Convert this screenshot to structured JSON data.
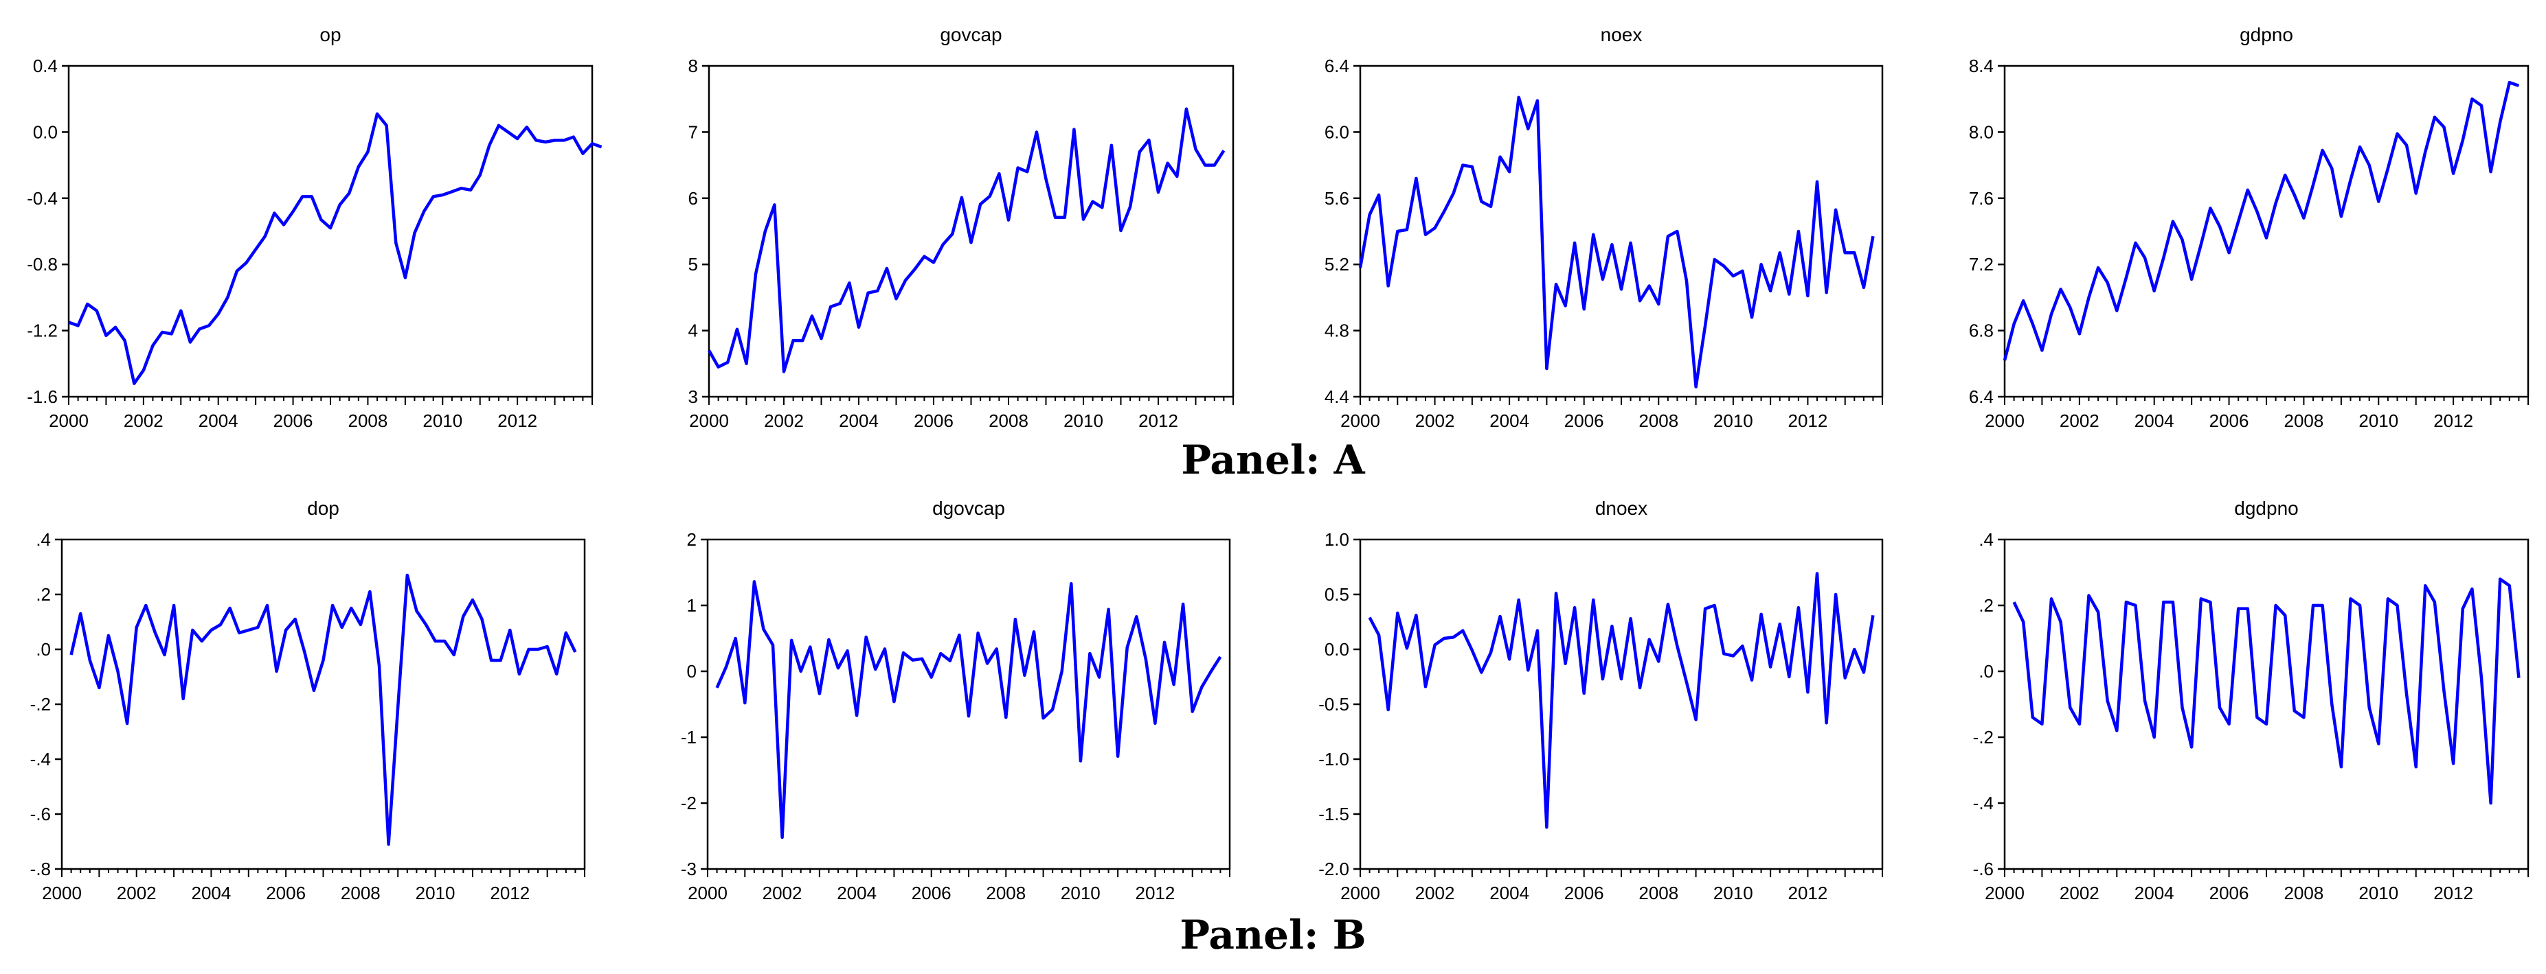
{
  "panels": [
    {
      "label": "Panel: A"
    },
    {
      "label": "Panel: B"
    }
  ],
  "style": {
    "line_color": "#0000ff",
    "axis_color": "#000000"
  },
  "chart_data": [
    {
      "type": "line",
      "title": "op",
      "panel": "A",
      "xlabel": "",
      "ylabel": "",
      "xlim": [
        2000.0,
        2014.0
      ],
      "ylim": [
        -1.6,
        0.4
      ],
      "x_ticks": [
        "2000",
        "2002",
        "2004",
        "2006",
        "2008",
        "2010",
        "2012"
      ],
      "y_ticks": [
        "-1.6",
        "-1.2",
        "-0.8",
        "-0.4",
        "0.0",
        "0.4"
      ],
      "x_start": 2000.0,
      "x_step": 0.25,
      "values": [
        -1.15,
        -1.17,
        -1.04,
        -1.08,
        -1.23,
        -1.18,
        -1.26,
        -1.52,
        -1.44,
        -1.29,
        -1.21,
        -1.22,
        -1.08,
        -1.27,
        -1.19,
        -1.17,
        -1.1,
        -1.0,
        -0.84,
        -0.79,
        -0.71,
        -0.63,
        -0.49,
        -0.56,
        -0.48,
        -0.39,
        -0.39,
        -0.53,
        -0.58,
        -0.44,
        -0.37,
        -0.21,
        -0.12,
        0.11,
        0.04,
        -0.67,
        -0.88,
        -0.61,
        -0.48,
        -0.39,
        -0.38,
        -0.36,
        -0.34,
        -0.35,
        -0.26,
        -0.08,
        0.04,
        0.0,
        -0.04,
        0.03,
        -0.05,
        -0.06,
        -0.05,
        -0.05,
        -0.03,
        -0.13,
        -0.07,
        -0.09
      ]
    },
    {
      "type": "line",
      "title": "govcap",
      "panel": "A",
      "xlabel": "",
      "ylabel": "",
      "xlim": [
        2000.0,
        2014.0
      ],
      "ylim": [
        3,
        8
      ],
      "x_ticks": [
        "2000",
        "2002",
        "2004",
        "2006",
        "2008",
        "2010",
        "2012"
      ],
      "y_ticks": [
        "3",
        "4",
        "5",
        "6",
        "7",
        "8"
      ],
      "x_start": 2000.0,
      "x_step": 0.25,
      "values": [
        3.7,
        3.45,
        3.52,
        4.02,
        3.5,
        4.86,
        5.5,
        5.9,
        3.38,
        3.85,
        3.85,
        4.22,
        3.88,
        4.36,
        4.41,
        4.72,
        4.05,
        4.57,
        4.6,
        4.94,
        4.48,
        4.76,
        4.93,
        5.12,
        5.03,
        5.3,
        5.46,
        6.01,
        5.33,
        5.91,
        6.03,
        6.37,
        5.67,
        6.46,
        6.4,
        7.0,
        6.29,
        5.71,
        5.71,
        7.04,
        5.68,
        5.95,
        5.86,
        6.8,
        5.51,
        5.87,
        6.7,
        6.88,
        6.09,
        6.53,
        6.33,
        7.35,
        6.74,
        6.5,
        6.5,
        6.72
      ]
    },
    {
      "type": "line",
      "title": "noex",
      "panel": "A",
      "xlabel": "",
      "ylabel": "",
      "xlim": [
        2000.0,
        2014.0
      ],
      "ylim": [
        4.4,
        6.4
      ],
      "x_ticks": [
        "2000",
        "2002",
        "2004",
        "2006",
        "2008",
        "2010",
        "2012"
      ],
      "y_ticks": [
        "4.4",
        "4.8",
        "5.2",
        "5.6",
        "6.0",
        "6.4"
      ],
      "x_start": 2000.0,
      "x_step": 0.25,
      "values": [
        5.18,
        5.5,
        5.62,
        5.07,
        5.4,
        5.41,
        5.72,
        5.38,
        5.42,
        5.52,
        5.63,
        5.8,
        5.79,
        5.58,
        5.55,
        5.85,
        5.76,
        6.21,
        6.02,
        6.19,
        4.57,
        5.08,
        4.95,
        5.33,
        4.93,
        5.38,
        5.11,
        5.32,
        5.05,
        5.33,
        4.98,
        5.07,
        4.96,
        5.37,
        5.4,
        5.1,
        4.46,
        4.83,
        5.23,
        5.19,
        5.13,
        5.16,
        4.88,
        5.2,
        5.04,
        5.27,
        5.02,
        5.4,
        5.01,
        5.7,
        5.03,
        5.53,
        5.27,
        5.27,
        5.06,
        5.37
      ]
    },
    {
      "type": "line",
      "title": "gdpno",
      "panel": "A",
      "xlabel": "",
      "ylabel": "",
      "xlim": [
        2000.0,
        2014.0
      ],
      "ylim": [
        6.4,
        8.4
      ],
      "x_ticks": [
        "2000",
        "2002",
        "2004",
        "2006",
        "2008",
        "2010",
        "2012"
      ],
      "y_ticks": [
        "6.4",
        "6.8",
        "7.2",
        "7.6",
        "8.0",
        "8.4"
      ],
      "x_start": 2000.0,
      "x_step": 0.25,
      "values": [
        6.62,
        6.84,
        6.98,
        6.84,
        6.68,
        6.9,
        7.05,
        6.94,
        6.78,
        7.0,
        7.18,
        7.09,
        6.92,
        7.12,
        7.33,
        7.24,
        7.04,
        7.24,
        7.46,
        7.35,
        7.11,
        7.32,
        7.54,
        7.43,
        7.27,
        7.46,
        7.65,
        7.52,
        7.36,
        7.57,
        7.74,
        7.62,
        7.48,
        7.68,
        7.89,
        7.78,
        7.49,
        7.71,
        7.91,
        7.8,
        7.58,
        7.78,
        7.99,
        7.92,
        7.63,
        7.88,
        8.09,
        8.03,
        7.75,
        7.95,
        8.2,
        8.16,
        7.76,
        8.06,
        8.3,
        8.28
      ]
    },
    {
      "type": "line",
      "title": "dop",
      "panel": "B",
      "xlabel": "",
      "ylabel": "",
      "xlim": [
        2000.0,
        2014.0
      ],
      "ylim": [
        -0.8,
        0.4
      ],
      "x_ticks": [
        "2000",
        "2002",
        "2004",
        "2006",
        "2008",
        "2010",
        "2012"
      ],
      "y_ticks": [
        "-.8",
        "-.6",
        "-.4",
        "-.2",
        ".0",
        ".2",
        ".4"
      ],
      "x_start": 2000.25,
      "x_step": 0.25,
      "values": [
        -0.02,
        0.13,
        -0.04,
        -0.14,
        0.05,
        -0.08,
        -0.27,
        0.08,
        0.16,
        0.06,
        -0.02,
        0.16,
        -0.18,
        0.07,
        0.03,
        0.07,
        0.09,
        0.15,
        0.06,
        0.07,
        0.08,
        0.16,
        -0.08,
        0.07,
        0.11,
        -0.01,
        -0.15,
        -0.04,
        0.16,
        0.08,
        0.15,
        0.09,
        0.21,
        -0.06,
        -0.71,
        -0.21,
        0.27,
        0.14,
        0.09,
        0.03,
        0.03,
        -0.02,
        0.12,
        0.18,
        0.11,
        -0.04,
        -0.04,
        0.07,
        -0.09,
        0.0,
        0.0,
        0.01,
        -0.09,
        0.06,
        -0.01
      ]
    },
    {
      "type": "line",
      "title": "dgovcap",
      "panel": "B",
      "xlabel": "",
      "ylabel": "",
      "xlim": [
        2000.0,
        2014.0
      ],
      "ylim": [
        -3,
        2
      ],
      "x_ticks": [
        "2000",
        "2002",
        "2004",
        "2006",
        "2008",
        "2010",
        "2012"
      ],
      "y_ticks": [
        "-3",
        "-2",
        "-1",
        "0",
        "1",
        "2"
      ],
      "x_start": 2000.25,
      "x_step": 0.25,
      "values": [
        -0.25,
        0.07,
        0.5,
        -0.48,
        1.36,
        0.64,
        0.4,
        -2.52,
        0.47,
        0.0,
        0.37,
        -0.34,
        0.48,
        0.05,
        0.31,
        -0.67,
        0.52,
        0.03,
        0.34,
        -0.46,
        0.28,
        0.17,
        0.19,
        -0.09,
        0.27,
        0.16,
        0.55,
        -0.68,
        0.58,
        0.12,
        0.34,
        -0.7,
        0.79,
        -0.06,
        0.6,
        -0.71,
        -0.58,
        0.0,
        1.33,
        -1.36,
        0.27,
        -0.09,
        0.94,
        -1.29,
        0.36,
        0.83,
        0.18,
        -0.79,
        0.44,
        -0.2,
        1.02,
        -0.61,
        -0.24,
        0.0,
        0.22
      ]
    },
    {
      "type": "line",
      "title": "dnoex",
      "panel": "B",
      "xlabel": "",
      "ylabel": "",
      "xlim": [
        2000.0,
        2014.0
      ],
      "ylim": [
        -2.0,
        1.0
      ],
      "x_ticks": [
        "2000",
        "2002",
        "2004",
        "2006",
        "2008",
        "2010",
        "2012"
      ],
      "y_ticks": [
        "-2.0",
        "-1.5",
        "-1.0",
        "-0.5",
        "0.0",
        "0.5",
        "1.0"
      ],
      "x_start": 2000.25,
      "x_step": 0.25,
      "values": [
        0.29,
        0.13,
        -0.55,
        0.33,
        0.01,
        0.31,
        -0.34,
        0.04,
        0.1,
        0.11,
        0.17,
        -0.01,
        -0.21,
        -0.03,
        0.3,
        -0.09,
        0.45,
        -0.19,
        0.17,
        -1.62,
        0.51,
        -0.13,
        0.38,
        -0.4,
        0.45,
        -0.27,
        0.21,
        -0.27,
        0.28,
        -0.35,
        0.09,
        -0.11,
        0.41,
        0.03,
        -0.3,
        -0.64,
        0.37,
        0.4,
        -0.04,
        -0.06,
        0.03,
        -0.28,
        0.32,
        -0.16,
        0.23,
        -0.25,
        0.38,
        -0.39,
        0.69,
        -0.67,
        0.5,
        -0.26,
        0.0,
        -0.21,
        0.31
      ]
    },
    {
      "type": "line",
      "title": "dgdpno",
      "panel": "B",
      "xlabel": "",
      "ylabel": "",
      "xlim": [
        2000.0,
        2014.0
      ],
      "ylim": [
        -0.6,
        0.4
      ],
      "x_ticks": [
        "2000",
        "2002",
        "2004",
        "2006",
        "2008",
        "2010",
        "2012"
      ],
      "y_ticks": [
        "-.6",
        "-.4",
        "-.2",
        ".0",
        ".2",
        ".4"
      ],
      "x_start": 2000.25,
      "x_step": 0.25,
      "values": [
        0.21,
        0.15,
        -0.14,
        -0.16,
        0.22,
        0.15,
        -0.11,
        -0.16,
        0.23,
        0.18,
        -0.09,
        -0.18,
        0.21,
        0.2,
        -0.09,
        -0.2,
        0.21,
        0.21,
        -0.11,
        -0.23,
        0.22,
        0.21,
        -0.11,
        -0.16,
        0.19,
        0.19,
        -0.14,
        -0.16,
        0.2,
        0.17,
        -0.12,
        -0.14,
        0.2,
        0.2,
        -0.1,
        -0.29,
        0.22,
        0.2,
        -0.11,
        -0.22,
        0.22,
        0.2,
        -0.07,
        -0.29,
        0.26,
        0.21,
        -0.06,
        -0.28,
        0.19,
        0.25,
        -0.02,
        -0.4,
        0.28,
        0.26,
        -0.02
      ]
    }
  ]
}
